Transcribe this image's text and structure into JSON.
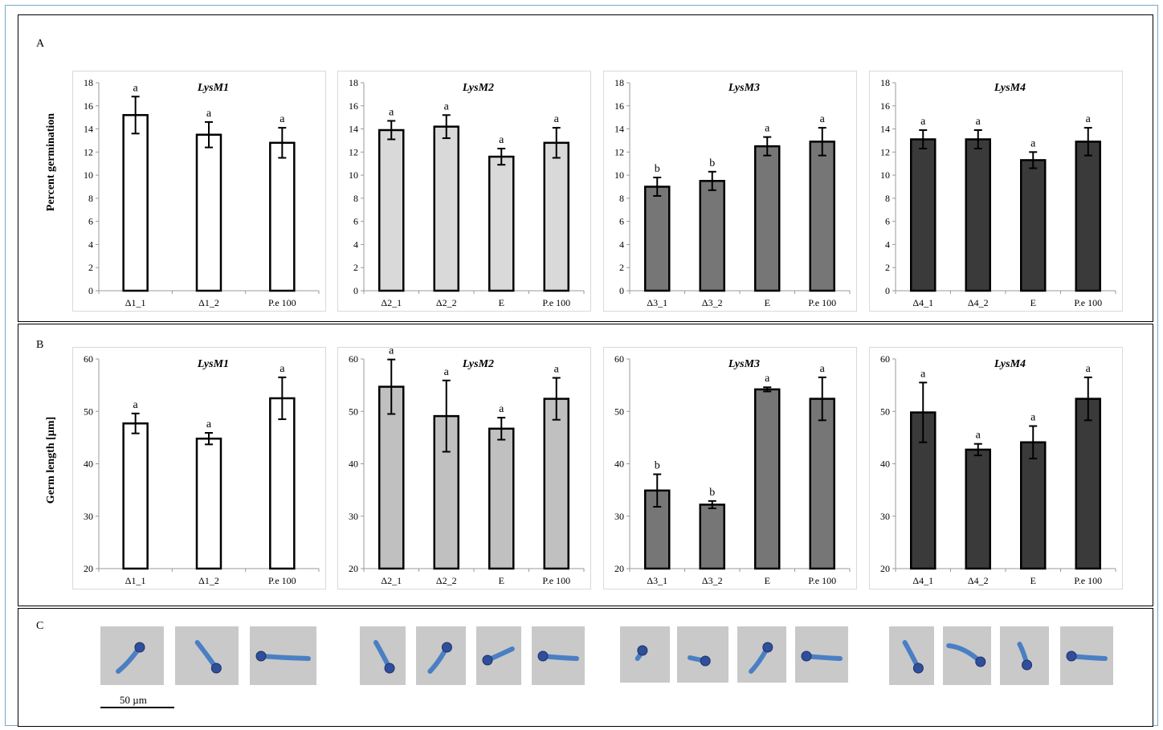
{
  "sections": {
    "a": {
      "label": "A",
      "ylabel": "Percent germination"
    },
    "b": {
      "label": "B",
      "ylabel": "Germ length [µm]"
    },
    "c": {
      "label": "C",
      "scale_label": "50 µm"
    }
  },
  "chart_data": [
    {
      "id": "A1",
      "type": "bar",
      "title": "LysM1",
      "ylim": [
        0,
        18
      ],
      "ytick_step": 2,
      "fill": "#ffffff",
      "categories": [
        "Δ1_1",
        "Δ1_2",
        "P.e 100"
      ],
      "values": [
        15.2,
        13.5,
        12.8
      ],
      "errors": [
        1.6,
        1.1,
        1.3
      ],
      "labels": [
        "a",
        "a",
        "a"
      ]
    },
    {
      "id": "A2",
      "type": "bar",
      "title": "LysM2",
      "ylim": [
        0,
        18
      ],
      "ytick_step": 2,
      "fill": "#d9d9d9",
      "categories": [
        "Δ2_1",
        "Δ2_2",
        "E",
        "P.e 100"
      ],
      "values": [
        13.9,
        14.2,
        11.6,
        12.8
      ],
      "errors": [
        0.8,
        1.0,
        0.7,
        1.3
      ],
      "labels": [
        "a",
        "a",
        "a",
        "a"
      ]
    },
    {
      "id": "A3",
      "type": "bar",
      "title": "LysM3",
      "ylim": [
        0,
        18
      ],
      "ytick_step": 2,
      "fill": "#767676",
      "categories": [
        "Δ3_1",
        "Δ3_2",
        "E",
        "P.e 100"
      ],
      "values": [
        9.0,
        9.5,
        12.5,
        12.9
      ],
      "errors": [
        0.8,
        0.8,
        0.8,
        1.2
      ],
      "labels": [
        "b",
        "b",
        "a",
        "a"
      ]
    },
    {
      "id": "A4",
      "type": "bar",
      "title": "LysM4",
      "ylim": [
        0,
        18
      ],
      "ytick_step": 2,
      "fill": "#3a3a3a",
      "categories": [
        "Δ4_1",
        "Δ4_2",
        "E",
        "P.e 100"
      ],
      "values": [
        13.1,
        13.1,
        11.3,
        12.9
      ],
      "errors": [
        0.8,
        0.8,
        0.7,
        1.2
      ],
      "labels": [
        "a",
        "a",
        "a",
        "a"
      ]
    },
    {
      "id": "B1",
      "type": "bar",
      "title": "LysM1",
      "ylim": [
        20,
        60
      ],
      "ytick_step": 10,
      "fill": "#ffffff",
      "categories": [
        "Δ1_1",
        "Δ1_2",
        "P.e 100"
      ],
      "values": [
        47.7,
        44.8,
        52.5
      ],
      "errors": [
        1.9,
        1.1,
        4.0
      ],
      "labels": [
        "a",
        "a",
        "a"
      ]
    },
    {
      "id": "B2",
      "type": "bar",
      "title": "LysM2",
      "ylim": [
        20,
        60
      ],
      "ytick_step": 10,
      "fill": "#c0c0c0",
      "categories": [
        "Δ2_1",
        "Δ2_2",
        "E",
        "P.e 100"
      ],
      "values": [
        54.7,
        49.1,
        46.7,
        52.4
      ],
      "errors": [
        5.2,
        6.8,
        2.1,
        4.0
      ],
      "labels": [
        "a",
        "a",
        "a",
        "a"
      ]
    },
    {
      "id": "B3",
      "type": "bar",
      "title": "LysM3",
      "ylim": [
        20,
        60
      ],
      "ytick_step": 10,
      "fill": "#767676",
      "categories": [
        "Δ3_1",
        "Δ3_2",
        "E",
        "P.e 100"
      ],
      "values": [
        34.9,
        32.2,
        54.2,
        52.4
      ],
      "errors": [
        3.1,
        0.7,
        0.4,
        4.1
      ],
      "labels": [
        "b",
        "b",
        "a",
        "a"
      ]
    },
    {
      "id": "B4",
      "type": "bar",
      "title": "LysM4",
      "ylim": [
        20,
        60
      ],
      "ytick_step": 10,
      "fill": "#3a3a3a",
      "categories": [
        "Δ4_1",
        "Δ4_2",
        "E",
        "P.e 100"
      ],
      "values": [
        49.8,
        42.7,
        44.1,
        52.4
      ],
      "errors": [
        5.7,
        1.1,
        3.1,
        4.1
      ],
      "labels": [
        "a",
        "a",
        "a",
        "a"
      ]
    }
  ]
}
